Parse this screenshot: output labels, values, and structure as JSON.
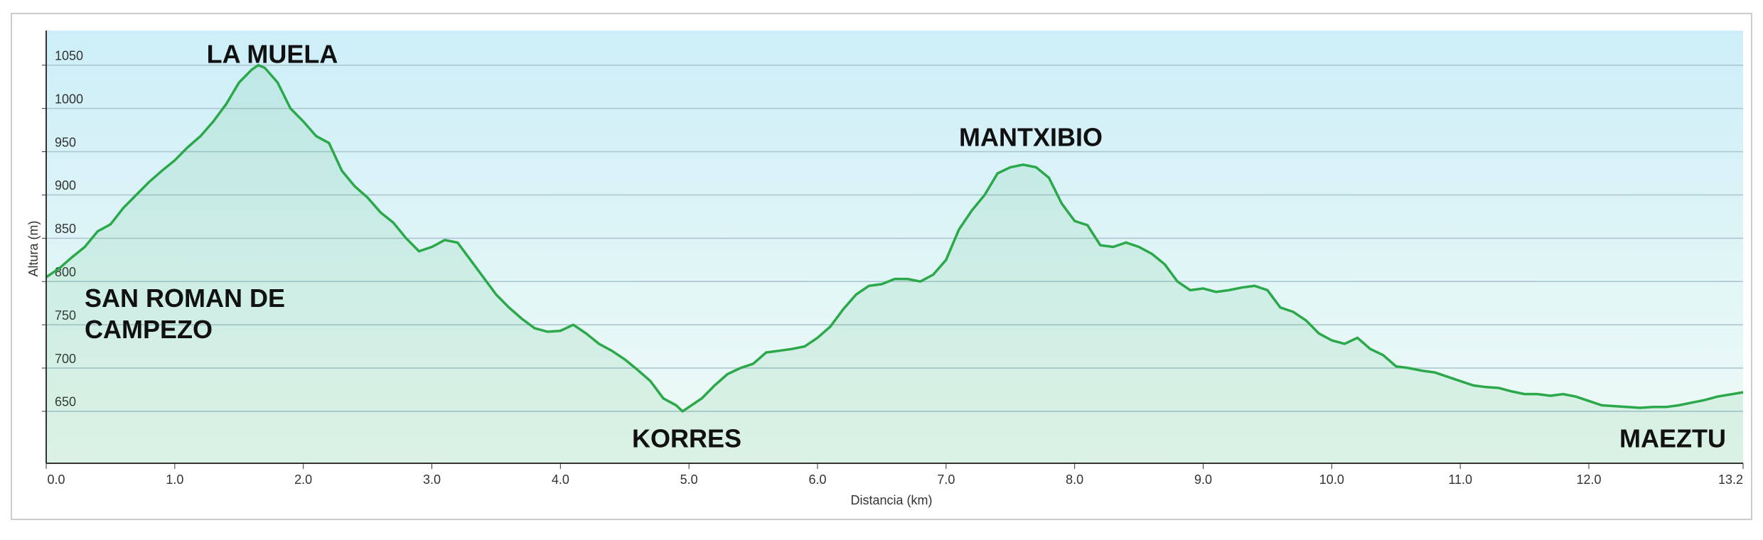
{
  "chart_data": {
    "type": "line",
    "annotations": [
      "LA MUELA",
      "MANTXIBIO",
      "SAN ROMAN DE CAMPEZO",
      "KORRES",
      "MAEZTU"
    ],
    "xlabel": "Distancia  (km)",
    "ylabel": "Altura (m)",
    "color": "#2aa84a",
    "x": [
      0.0,
      0.1,
      0.2,
      0.3,
      0.4,
      0.5,
      0.6,
      0.7,
      0.8,
      0.9,
      1.0,
      1.1,
      1.2,
      1.3,
      1.4,
      1.5,
      1.6,
      1.65,
      1.7,
      1.8,
      1.9,
      2.0,
      2.1,
      2.2,
      2.3,
      2.4,
      2.5,
      2.6,
      2.7,
      2.8,
      2.9,
      3.0,
      3.1,
      3.2,
      3.3,
      3.4,
      3.5,
      3.6,
      3.7,
      3.8,
      3.9,
      4.0,
      4.1,
      4.2,
      4.3,
      4.4,
      4.5,
      4.6,
      4.7,
      4.8,
      4.9,
      4.95,
      5.0,
      5.1,
      5.2,
      5.3,
      5.4,
      5.5,
      5.6,
      5.7,
      5.8,
      5.9,
      6.0,
      6.1,
      6.2,
      6.3,
      6.4,
      6.5,
      6.6,
      6.7,
      6.8,
      6.9,
      7.0,
      7.1,
      7.2,
      7.3,
      7.4,
      7.5,
      7.6,
      7.7,
      7.8,
      7.9,
      8.0,
      8.1,
      8.2,
      8.3,
      8.4,
      8.5,
      8.6,
      8.7,
      8.8,
      8.9,
      9.0,
      9.1,
      9.2,
      9.3,
      9.4,
      9.5,
      9.6,
      9.7,
      9.8,
      9.9,
      10.0,
      10.1,
      10.2,
      10.3,
      10.4,
      10.5,
      10.6,
      10.7,
      10.8,
      10.9,
      11.0,
      11.1,
      11.2,
      11.3,
      11.4,
      11.5,
      11.6,
      11.7,
      11.8,
      11.9,
      12.0,
      12.1,
      12.2,
      12.3,
      12.4,
      12.5,
      12.6,
      12.7,
      12.8,
      12.9,
      13.0,
      13.2
    ],
    "values": [
      805,
      815,
      828,
      840,
      858,
      866,
      885,
      900,
      915,
      928,
      940,
      955,
      968,
      985,
      1005,
      1030,
      1045,
      1050,
      1047,
      1030,
      1000,
      985,
      968,
      960,
      928,
      910,
      897,
      880,
      868,
      850,
      835,
      840,
      848,
      845,
      825,
      805,
      785,
      770,
      757,
      746,
      742,
      743,
      750,
      740,
      728,
      720,
      710,
      698,
      685,
      665,
      657,
      650,
      655,
      665,
      680,
      693,
      700,
      705,
      718,
      720,
      722,
      725,
      735,
      748,
      768,
      785,
      795,
      797,
      803,
      803,
      800,
      808,
      825,
      860,
      882,
      900,
      925,
      932,
      935,
      932,
      920,
      890,
      870,
      865,
      842,
      840,
      845,
      840,
      832,
      820,
      800,
      790,
      792,
      788,
      790,
      793,
      795,
      790,
      770,
      765,
      755,
      740,
      732,
      728,
      735,
      722,
      715,
      702,
      700,
      697,
      695,
      690,
      685,
      680,
      678,
      677,
      673,
      670,
      670,
      668,
      670,
      667,
      662,
      657,
      656,
      655,
      654,
      655,
      655,
      657,
      660,
      663,
      667,
      672
    ],
    "xlim": [
      0,
      13.2
    ],
    "ylim": [
      590,
      1090
    ],
    "xticks": [
      {
        "value": 0,
        "label": "0.0"
      },
      {
        "value": 1,
        "label": "1.0"
      },
      {
        "value": 2,
        "label": "2.0"
      },
      {
        "value": 3,
        "label": "3.0"
      },
      {
        "value": 4,
        "label": "4.0"
      },
      {
        "value": 5,
        "label": "5.0"
      },
      {
        "value": 6,
        "label": "6.0"
      },
      {
        "value": 7,
        "label": "7.0"
      },
      {
        "value": 8,
        "label": "8.0"
      },
      {
        "value": 9,
        "label": "9.0"
      },
      {
        "value": 10,
        "label": "10.0"
      },
      {
        "value": 11,
        "label": "11.0"
      },
      {
        "value": 12,
        "label": "12.0"
      },
      13.2
    ],
    "yticks": [
      650,
      700,
      750,
      800,
      850,
      900,
      950,
      1000,
      1050
    ],
    "grid": true
  }
}
